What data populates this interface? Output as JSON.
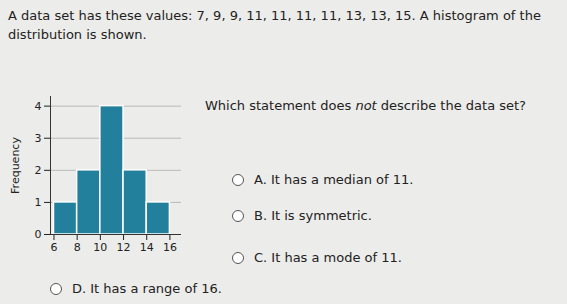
{
  "intro": "A data set has these values: 7, 9, 9, 11, 11, 11, 11, 13, 13, 15. A histogram of the distribution is shown.",
  "question": [
    "Which statement does ",
    "not",
    " describe the data set?"
  ],
  "options": [
    {
      "letter": "A.",
      "text": "It has a median of 11."
    },
    {
      "letter": "B.",
      "text": "It is symmetric."
    },
    {
      "letter": "C.",
      "text": "It has a mode of 11."
    },
    {
      "letter": "D.",
      "text": "It has a range of 16."
    }
  ],
  "chart_data": {
    "type": "histogram",
    "bins": [
      6,
      8,
      10,
      12,
      14,
      16
    ],
    "values": [
      1,
      2,
      4,
      2,
      1
    ],
    "color": "#23809c",
    "y_label": "Frequency",
    "xlim": [
      5.7,
      17
    ],
    "xticks": [
      6,
      8,
      10,
      12,
      14,
      16
    ],
    "ylim": [
      0,
      4.3
    ],
    "yticks": [
      0,
      1,
      2,
      3,
      4
    ],
    "grid": true
  }
}
